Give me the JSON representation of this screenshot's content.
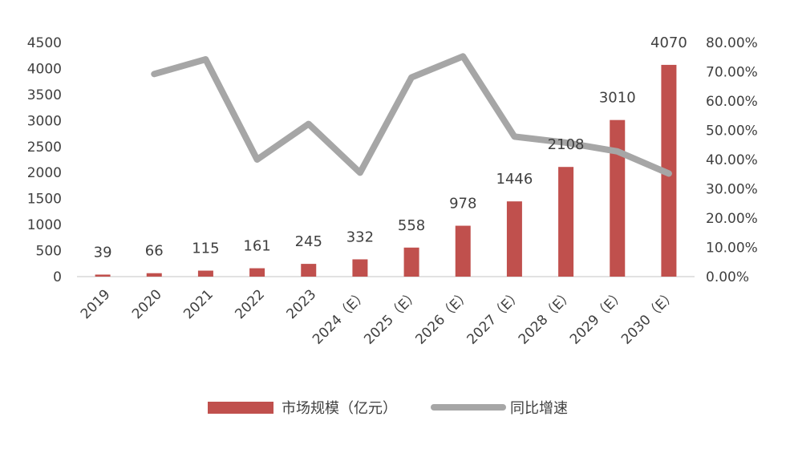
{
  "chart_data": {
    "type": "bar",
    "categories": [
      "2019",
      "2020",
      "2021",
      "2022",
      "2023",
      "2024（E）",
      "2025（E）",
      "2026（E）",
      "2027（E）",
      "2028（E）",
      "2029（E）",
      "2030（E）"
    ],
    "series": [
      {
        "name": "市场规模（亿元）",
        "type": "bar",
        "axis": "left",
        "color": "#c0504d",
        "values": [
          39,
          66,
          115,
          161,
          245,
          332,
          558,
          978,
          1446,
          2108,
          3010,
          4070
        ],
        "labels": [
          "39",
          "66",
          "115",
          "161",
          "245",
          "332",
          "558",
          "978",
          "1446",
          "2108",
          "3010",
          "4070"
        ]
      },
      {
        "name": "同比增速",
        "type": "line",
        "axis": "right",
        "color": "#a6a6a6",
        "values": [
          null,
          0.6923,
          0.7424,
          0.4,
          0.5217,
          0.3551,
          0.6807,
          0.7527,
          0.4785,
          0.4578,
          0.4279,
          0.3522
        ]
      }
    ],
    "y_left": {
      "ylim": [
        0,
        4500
      ],
      "ticks": [
        "0",
        "500",
        "1000",
        "1500",
        "2000",
        "2500",
        "3000",
        "3500",
        "4000",
        "4500"
      ]
    },
    "y_right": {
      "ylim": [
        0,
        0.8
      ],
      "ticks": [
        "0.00%",
        "10.00%",
        "20.00%",
        "30.00%",
        "40.00%",
        "50.00%",
        "60.00%",
        "70.00%",
        "80.00%"
      ]
    },
    "legend": {
      "position": "bottom"
    },
    "grid": false
  }
}
